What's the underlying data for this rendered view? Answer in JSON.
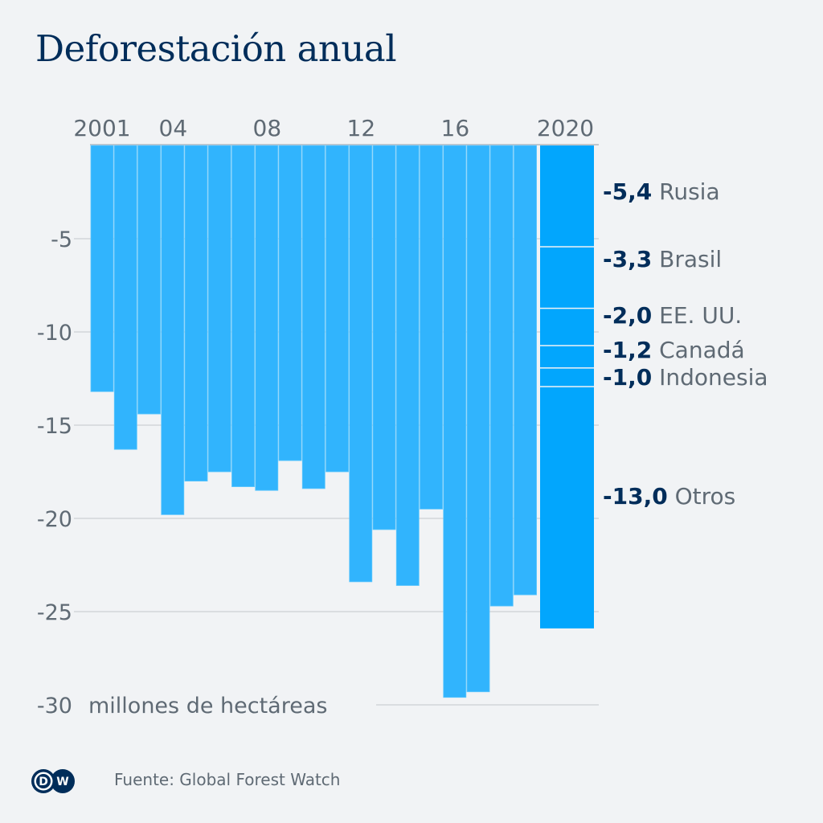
{
  "header": {
    "title": "Deforestación anual"
  },
  "footer": {
    "source": "Fuente: Global Forest Watch",
    "logo": "DW"
  },
  "colors": {
    "background": "#f1f3f5",
    "bar": "#31b4fd",
    "bar_highlight": "#02a6fd",
    "title": "#002d5a",
    "value_label": "#002d5a",
    "axis_text": "#5f6a74",
    "grid": "#c2c7cc"
  },
  "chart_data": {
    "type": "bar",
    "title": "Deforestación anual",
    "ylabel": "millones de hectáreas",
    "y_unit_label": "millones de hectáreas",
    "ylim": [
      -30,
      0
    ],
    "yticks": [
      -5,
      -10,
      -15,
      -20,
      -25,
      -30
    ],
    "ytick_labels": [
      "-5",
      "-10",
      "-15",
      "-20",
      "-25",
      "-30"
    ],
    "grid": true,
    "x_axis_position": "top",
    "categories": [
      "2001",
      "2002",
      "2003",
      "2004",
      "2005",
      "2006",
      "2007",
      "2008",
      "2009",
      "2010",
      "2011",
      "2012",
      "2013",
      "2014",
      "2015",
      "2016",
      "2017",
      "2018",
      "2019",
      "2020"
    ],
    "xtick_labels": [
      {
        "category": "2001",
        "label": "2001"
      },
      {
        "category": "2004",
        "label": "04"
      },
      {
        "category": "2008",
        "label": "08"
      },
      {
        "category": "2012",
        "label": "12"
      },
      {
        "category": "2016",
        "label": "16"
      },
      {
        "category": "2020",
        "label": "2020"
      }
    ],
    "values": [
      -13.2,
      -16.3,
      -14.4,
      -19.8,
      -18.0,
      -17.5,
      -18.3,
      -18.5,
      -16.9,
      -18.4,
      -17.5,
      -23.4,
      -20.6,
      -23.6,
      -19.5,
      -29.6,
      -29.3,
      -24.7,
      -24.1,
      -25.9
    ],
    "stacked_breakdown_2020": {
      "category": "2020",
      "segments": [
        {
          "name": "Rusia",
          "value": -5.4,
          "label": "-5,4"
        },
        {
          "name": "Brasil",
          "value": -3.3,
          "label": "-3,3"
        },
        {
          "name": "EE. UU.",
          "value": -2.0,
          "label": "-2,0"
        },
        {
          "name": "Canadá",
          "value": -1.2,
          "label": "-1,2"
        },
        {
          "name": "Indonesia",
          "value": -1.0,
          "label": "-1,0"
        },
        {
          "name": "Otros",
          "value": -13.0,
          "label": "-13,0"
        }
      ]
    },
    "source": "Global Forest Watch"
  }
}
